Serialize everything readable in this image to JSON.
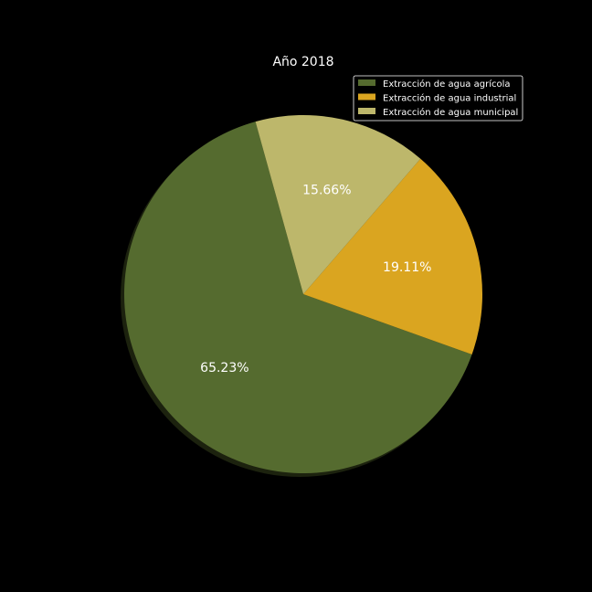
{
  "chart_data": {
    "type": "pie",
    "title": "Año 2018",
    "categories": [
      "Extracción de agua agrícola",
      "Extracción de agua industrial",
      "Extracción de agua municipal"
    ],
    "values": [
      65.23,
      19.11,
      15.66
    ],
    "labels": [
      "65.23%",
      "19.11%",
      "15.66%"
    ],
    "colors": [
      "#556b2f",
      "#daa520",
      "#bdb76b"
    ],
    "legend_position": "top-right",
    "shadow": true
  }
}
